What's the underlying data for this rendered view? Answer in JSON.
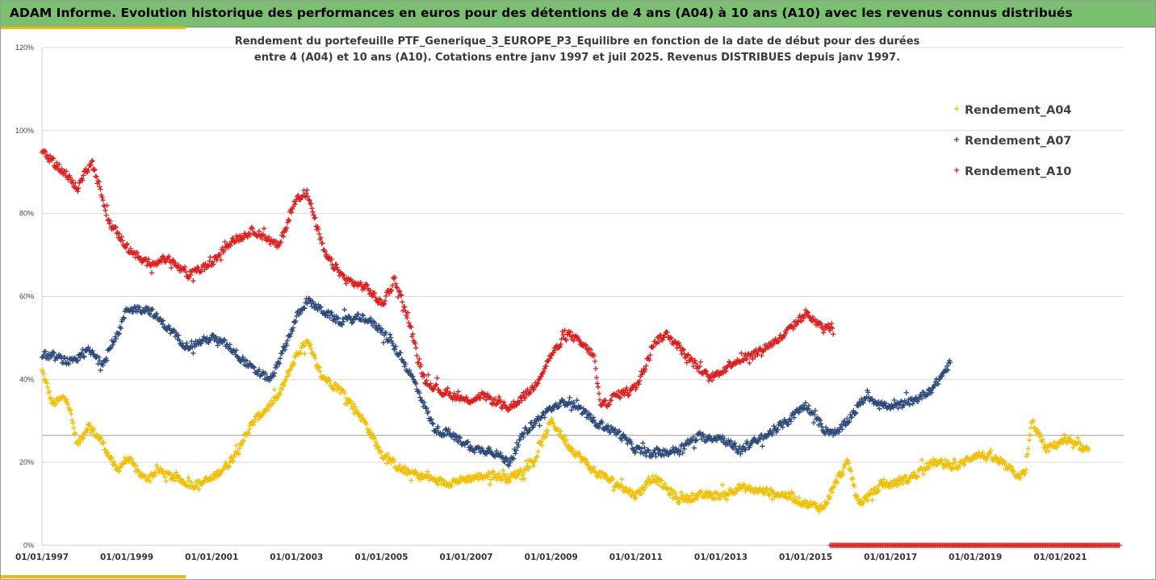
{
  "banner": {
    "title": "ADAM Informe. Evolution historique des performances en euros pour des détentions de 4 ans (A04) à 10 ans (A10) avec les revenus connus distribués"
  },
  "chart_data": {
    "type": "scatter",
    "title_lines": [
      "Rendement du portefeuille PTF_Generique_3_EUROPE_P3_Equilibre  en fonction de la date de début pour des durées",
      "entre 4 (A04) et 10 ans (A10). Cotations entre janv 1997 et juil 2025. Revenus DISTRIBUES depuis janv 1997."
    ],
    "x_axis": {
      "type": "date",
      "range": [
        "1997-01-01",
        "2022-07-01"
      ],
      "tick_labels": [
        "01/01/1997",
        "01/01/1999",
        "01/01/2001",
        "01/01/2003",
        "01/01/2005",
        "01/01/2007",
        "01/01/2009",
        "01/01/2011",
        "01/01/2013",
        "01/01/2015",
        "01/01/2017",
        "01/01/2019",
        "01/01/2021"
      ]
    },
    "y_axis": {
      "range": [
        0,
        1.2
      ],
      "format": "percent",
      "tick_labels": [
        "0%",
        "20%",
        "40%",
        "60%",
        "80%",
        "100%",
        "120%"
      ],
      "reference_line": 0.265
    },
    "grid": "horizontal",
    "marker": "plus",
    "legend_position": "right",
    "series": [
      {
        "name": "Rendement_A04",
        "color": "#f5bf00",
        "keypoints": [
          [
            "1997-01-01",
            0.42
          ],
          [
            "1997-04-01",
            0.34
          ],
          [
            "1997-08-01",
            0.36
          ],
          [
            "1997-11-01",
            0.24
          ],
          [
            "1998-02-01",
            0.29
          ],
          [
            "1998-06-01",
            0.25
          ],
          [
            "1998-10-01",
            0.18
          ],
          [
            "1999-01-01",
            0.21
          ],
          [
            "1999-06-01",
            0.16
          ],
          [
            "1999-10-01",
            0.18
          ],
          [
            "2000-03-01",
            0.16
          ],
          [
            "2000-08-01",
            0.145
          ],
          [
            "2001-01-01",
            0.16
          ],
          [
            "2001-06-01",
            0.2
          ],
          [
            "2002-01-01",
            0.3
          ],
          [
            "2002-08-01",
            0.36
          ],
          [
            "2003-01-01",
            0.46
          ],
          [
            "2003-04-01",
            0.49
          ],
          [
            "2003-08-01",
            0.41
          ],
          [
            "2004-02-01",
            0.37
          ],
          [
            "2004-08-01",
            0.3
          ],
          [
            "2005-01-01",
            0.22
          ],
          [
            "2005-07-01",
            0.18
          ],
          [
            "2006-01-01",
            0.165
          ],
          [
            "2006-07-01",
            0.15
          ],
          [
            "2007-01-01",
            0.16
          ],
          [
            "2007-08-01",
            0.17
          ],
          [
            "2008-01-01",
            0.16
          ],
          [
            "2008-08-01",
            0.2
          ],
          [
            "2009-01-01",
            0.3
          ],
          [
            "2009-06-01",
            0.24
          ],
          [
            "2010-01-01",
            0.18
          ],
          [
            "2010-07-01",
            0.15
          ],
          [
            "2011-01-01",
            0.12
          ],
          [
            "2011-06-01",
            0.165
          ],
          [
            "2012-01-01",
            0.11
          ],
          [
            "2012-08-01",
            0.12
          ],
          [
            "2013-01-01",
            0.12
          ],
          [
            "2013-06-01",
            0.14
          ],
          [
            "2014-01-01",
            0.13
          ],
          [
            "2014-08-01",
            0.12
          ],
          [
            "2015-01-01",
            0.1
          ],
          [
            "2015-06-01",
            0.09
          ],
          [
            "2015-10-01",
            0.16
          ],
          [
            "2016-01-01",
            0.2
          ],
          [
            "2016-04-01",
            0.1
          ],
          [
            "2016-10-01",
            0.14
          ],
          [
            "2017-06-01",
            0.16
          ],
          [
            "2018-01-01",
            0.2
          ],
          [
            "2018-08-01",
            0.19
          ],
          [
            "2019-01-01",
            0.22
          ],
          [
            "2019-06-01",
            0.21
          ],
          [
            "2020-01-01",
            0.17
          ],
          [
            "2020-03-01",
            0.17
          ],
          [
            "2020-05-01",
            0.3
          ],
          [
            "2020-09-01",
            0.23
          ],
          [
            "2021-01-01",
            0.25
          ],
          [
            "2021-06-01",
            0.24
          ],
          [
            "2021-09-01",
            0.23
          ]
        ]
      },
      {
        "name": "Rendement_A07",
        "color": "#2f4b7c",
        "keypoints": [
          [
            "1997-01-01",
            0.46
          ],
          [
            "1997-06-01",
            0.45
          ],
          [
            "1997-10-01",
            0.44
          ],
          [
            "1998-02-01",
            0.47
          ],
          [
            "1998-06-01",
            0.44
          ],
          [
            "1998-10-01",
            0.5
          ],
          [
            "1999-01-01",
            0.57
          ],
          [
            "1999-07-01",
            0.57
          ],
          [
            "2000-01-01",
            0.52
          ],
          [
            "2000-06-01",
            0.48
          ],
          [
            "2001-01-01",
            0.5
          ],
          [
            "2001-06-01",
            0.48
          ],
          [
            "2002-01-01",
            0.42
          ],
          [
            "2002-06-01",
            0.4
          ],
          [
            "2003-01-01",
            0.55
          ],
          [
            "2003-04-01",
            0.59
          ],
          [
            "2004-01-01",
            0.54
          ],
          [
            "2004-08-01",
            0.55
          ],
          [
            "2005-01-01",
            0.52
          ],
          [
            "2005-06-01",
            0.46
          ],
          [
            "2005-10-01",
            0.4
          ],
          [
            "2006-04-01",
            0.28
          ],
          [
            "2006-08-01",
            0.27
          ],
          [
            "2007-04-01",
            0.23
          ],
          [
            "2007-08-01",
            0.23
          ],
          [
            "2008-01-01",
            0.2
          ],
          [
            "2008-06-01",
            0.28
          ],
          [
            "2009-01-01",
            0.33
          ],
          [
            "2009-06-01",
            0.35
          ],
          [
            "2010-01-01",
            0.3
          ],
          [
            "2010-08-01",
            0.27
          ],
          [
            "2011-01-01",
            0.23
          ],
          [
            "2011-06-01",
            0.22
          ],
          [
            "2012-01-01",
            0.23
          ],
          [
            "2012-06-01",
            0.26
          ],
          [
            "2013-01-01",
            0.26
          ],
          [
            "2013-06-01",
            0.23
          ],
          [
            "2014-01-01",
            0.26
          ],
          [
            "2014-08-01",
            0.3
          ],
          [
            "2015-01-01",
            0.34
          ],
          [
            "2015-06-01",
            0.28
          ],
          [
            "2015-10-01",
            0.27
          ],
          [
            "2016-06-01",
            0.36
          ],
          [
            "2017-01-01",
            0.33
          ],
          [
            "2017-08-01",
            0.35
          ],
          [
            "2018-01-01",
            0.38
          ],
          [
            "2018-06-01",
            0.44
          ]
        ]
      },
      {
        "name": "Rendement_A10",
        "color": "#e01e1e",
        "keypoints": [
          [
            "1997-01-01",
            0.95
          ],
          [
            "1997-06-01",
            0.91
          ],
          [
            "1997-11-01",
            0.86
          ],
          [
            "1998-03-01",
            0.93
          ],
          [
            "1998-08-01",
            0.78
          ],
          [
            "1999-01-01",
            0.72
          ],
          [
            "1999-06-01",
            0.68
          ],
          [
            "2000-01-01",
            0.69
          ],
          [
            "2000-06-01",
            0.65
          ],
          [
            "2001-01-01",
            0.68
          ],
          [
            "2001-06-01",
            0.73
          ],
          [
            "2002-01-01",
            0.76
          ],
          [
            "2002-08-01",
            0.72
          ],
          [
            "2003-01-01",
            0.84
          ],
          [
            "2003-04-01",
            0.85
          ],
          [
            "2003-09-01",
            0.7
          ],
          [
            "2004-03-01",
            0.64
          ],
          [
            "2004-09-01",
            0.62
          ],
          [
            "2005-01-01",
            0.58
          ],
          [
            "2005-05-01",
            0.64
          ],
          [
            "2005-09-01",
            0.53
          ],
          [
            "2006-01-01",
            0.4
          ],
          [
            "2006-06-01",
            0.37
          ],
          [
            "2007-01-01",
            0.35
          ],
          [
            "2007-06-01",
            0.36
          ],
          [
            "2008-01-01",
            0.33
          ],
          [
            "2008-08-01",
            0.38
          ],
          [
            "2009-01-01",
            0.46
          ],
          [
            "2009-06-01",
            0.51
          ],
          [
            "2010-01-01",
            0.46
          ],
          [
            "2010-03-01",
            0.33
          ],
          [
            "2010-07-01",
            0.36
          ],
          [
            "2011-01-01",
            0.38
          ],
          [
            "2011-06-01",
            0.49
          ],
          [
            "2011-10-01",
            0.51
          ],
          [
            "2012-04-01",
            0.45
          ],
          [
            "2012-10-01",
            0.4
          ],
          [
            "2013-04-01",
            0.44
          ],
          [
            "2013-10-01",
            0.46
          ],
          [
            "2014-06-01",
            0.5
          ],
          [
            "2015-01-01",
            0.56
          ],
          [
            "2015-06-01",
            0.52
          ],
          [
            "2015-09-01",
            0.53
          ]
        ],
        "baseline": {
          "value": 0,
          "from": "2015-08-01",
          "to": "2022-06-01"
        }
      }
    ]
  }
}
